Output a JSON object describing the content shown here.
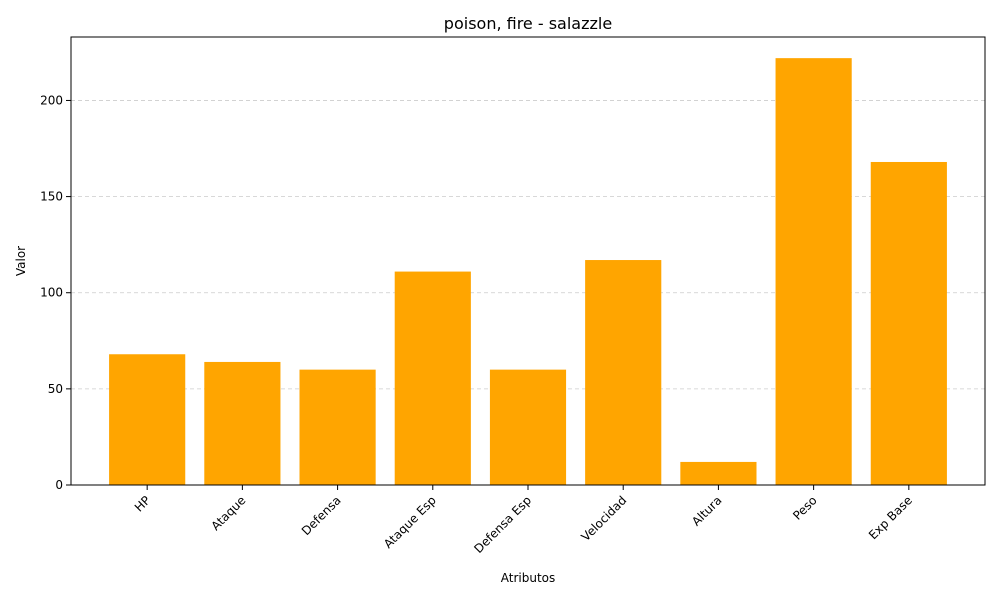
{
  "chart_data": {
    "type": "bar",
    "title": "poison, fire - salazzle",
    "xlabel": "Atributos",
    "ylabel": "Valor",
    "categories": [
      "HP",
      "Ataque",
      "Defensa",
      "Ataque Esp",
      "Defensa Esp",
      "Velocidad",
      "Altura",
      "Peso",
      "Exp Base"
    ],
    "values": [
      68,
      64,
      60,
      111,
      60,
      117,
      12,
      222,
      168
    ],
    "yticks": [
      0,
      50,
      100,
      150,
      200
    ],
    "ylim": [
      0,
      233
    ],
    "grid": "y-dashed",
    "bar_color": "#ffa500",
    "grid_color": "#cccccc",
    "x_tick_rotation": "45deg"
  }
}
